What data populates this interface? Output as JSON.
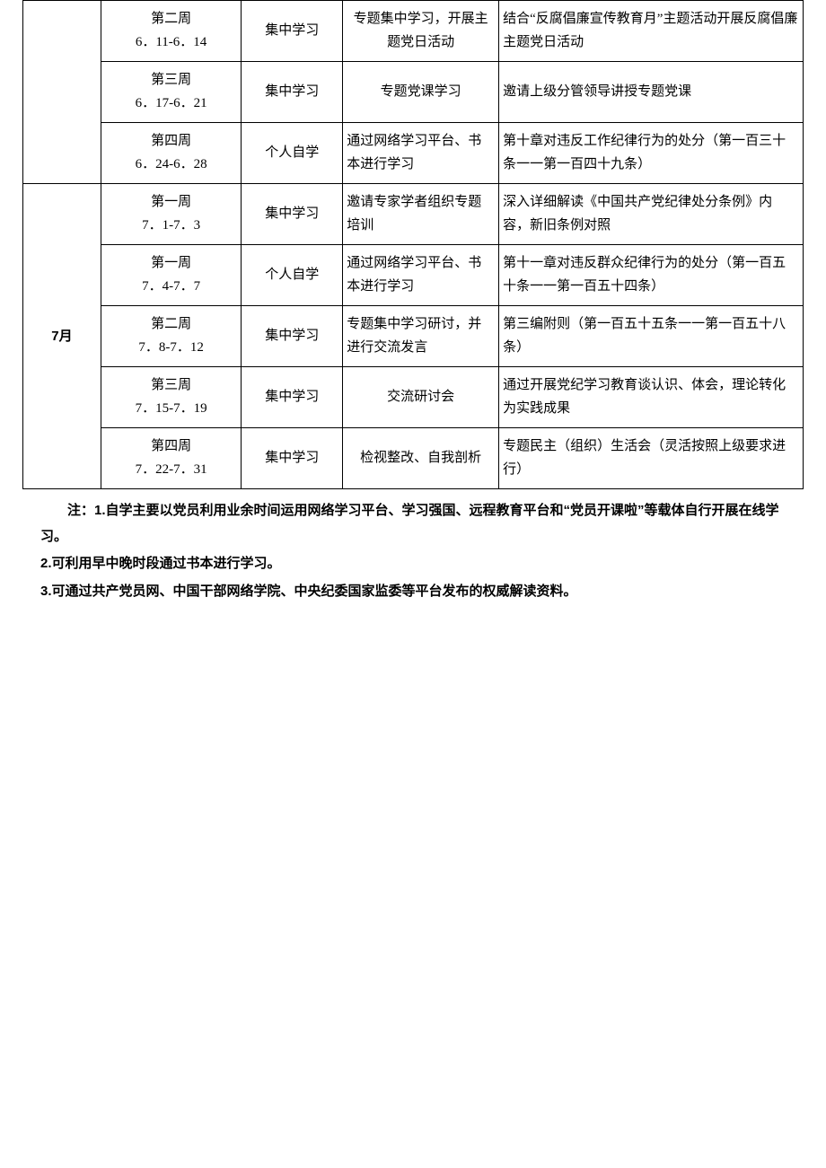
{
  "table": {
    "columns_width_pct": [
      10,
      18,
      13,
      20,
      39
    ],
    "cell_font_size_pt": 11,
    "border_color": "#000000",
    "background_color": "#ffffff",
    "text_color": "#000000",
    "rows": [
      {
        "month": "",
        "month_rowspan": 3,
        "week_label": "第二周",
        "week_dates": "6．11-6．14",
        "mode": "集中学习",
        "method": "专题集中学习，开展主题党日活动",
        "method_align": "center",
        "content": "结合“反腐倡廉宣传教育月”主题活动开展反腐倡廉主题党日活动",
        "content_align": "left"
      },
      {
        "week_label": "第三周",
        "week_dates": "6．17-6．21",
        "mode": "集中学习",
        "method": "专题党课学习",
        "method_align": "center",
        "content": "邀请上级分管领导讲授专题党课",
        "content_align": "left"
      },
      {
        "week_label": "第四周",
        "week_dates": "6．24-6．28",
        "mode": "个人自学",
        "method": "通过网络学习平台、书本进行学习",
        "method_align": "left",
        "content": "第十章对违反工作纪律行为的处分（第一百三十条一一第一百四十九条）",
        "content_align": "left"
      },
      {
        "month": "7月",
        "month_rowspan": 5,
        "week_label": "第一周",
        "week_dates": "7．1-7．3",
        "mode": "集中学习",
        "method": "邀请专家学者组织专题培训",
        "method_align": "left",
        "content": "深入详细解读《中国共产党纪律处分条例》内容，新旧条例对照",
        "content_align": "left"
      },
      {
        "week_label": "第一周",
        "week_dates": "7．4-7．7",
        "mode": "个人自学",
        "method": "通过网络学习平台、书本进行学习",
        "method_align": "left",
        "content": "第十一章对违反群众纪律行为的处分（第一百五十条一一第一百五十四条）",
        "content_align": "left"
      },
      {
        "week_label": "第二周",
        "week_dates": "7．8-7．12",
        "mode": "集中学习",
        "method": "专题集中学习研讨，并进行交流发言",
        "method_align": "left",
        "content": "第三编附则（第一百五十五条一一第一百五十八条）",
        "content_align": "left"
      },
      {
        "week_label": "第三周",
        "week_dates": "7．15-7．19",
        "mode": "集中学习",
        "method": "交流研讨会",
        "method_align": "center",
        "content": "通过开展党纪学习教育谈认识、体会，理论转化为实践成果",
        "content_align": "left"
      },
      {
        "week_label": "第四周",
        "week_dates": "7．22-7．31",
        "mode": "集中学习",
        "method": "检视整改、自我剖析",
        "method_align": "center",
        "content": "专题民主（组织）生活会（灵活按照上级要求进行）",
        "content_align": "left"
      }
    ]
  },
  "notes": {
    "font_family": "Microsoft YaHei",
    "font_size_pt": 11,
    "font_weight": "bold",
    "line1": "注：1.自学主要以党员利用业余时间运用网络学习平台、学习强国、远程教育平台和“党员开课啦”等载体自行开展在线学习。",
    "line2": "2.可利用早中晚时段通过书本进行学习。",
    "line3": "3.可通过共产党员网、中国干部网络学院、中央纪委国家监委等平台发布的权威解读资料。"
  }
}
